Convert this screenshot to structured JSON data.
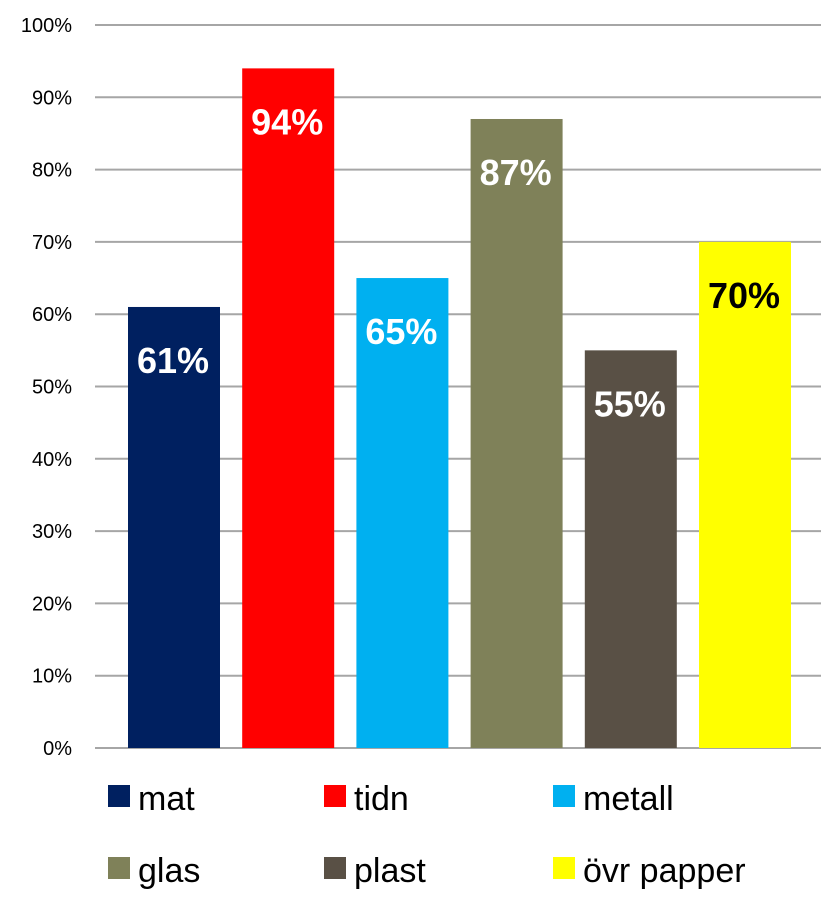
{
  "chart_data": {
    "type": "bar",
    "categories": [
      "mat",
      "tidn",
      "metall",
      "glas",
      "plast",
      "övr papper"
    ],
    "values": [
      61,
      94,
      65,
      87,
      55,
      70
    ],
    "data_labels": [
      "61%",
      "94%",
      "65%",
      "87%",
      "55%",
      "70%"
    ],
    "colors": [
      "#002060",
      "#FF0000",
      "#00B0F0",
      "#7F8159",
      "#595045",
      "#FFFF00"
    ],
    "label_colors": [
      "#ffffff",
      "#ffffff",
      "#ffffff",
      "#ffffff",
      "#ffffff",
      "#000000"
    ],
    "ylim": [
      0,
      100
    ],
    "y_ticks": [
      "0%",
      "10%",
      "20%",
      "30%",
      "40%",
      "50%",
      "60%",
      "70%",
      "80%",
      "90%",
      "100%"
    ],
    "grid": true,
    "legend_position": "bottom",
    "legend": [
      "mat",
      "tidn",
      "metall",
      "glas",
      "plast",
      "övr papper"
    ],
    "title": "",
    "xlabel": "",
    "ylabel": ""
  }
}
